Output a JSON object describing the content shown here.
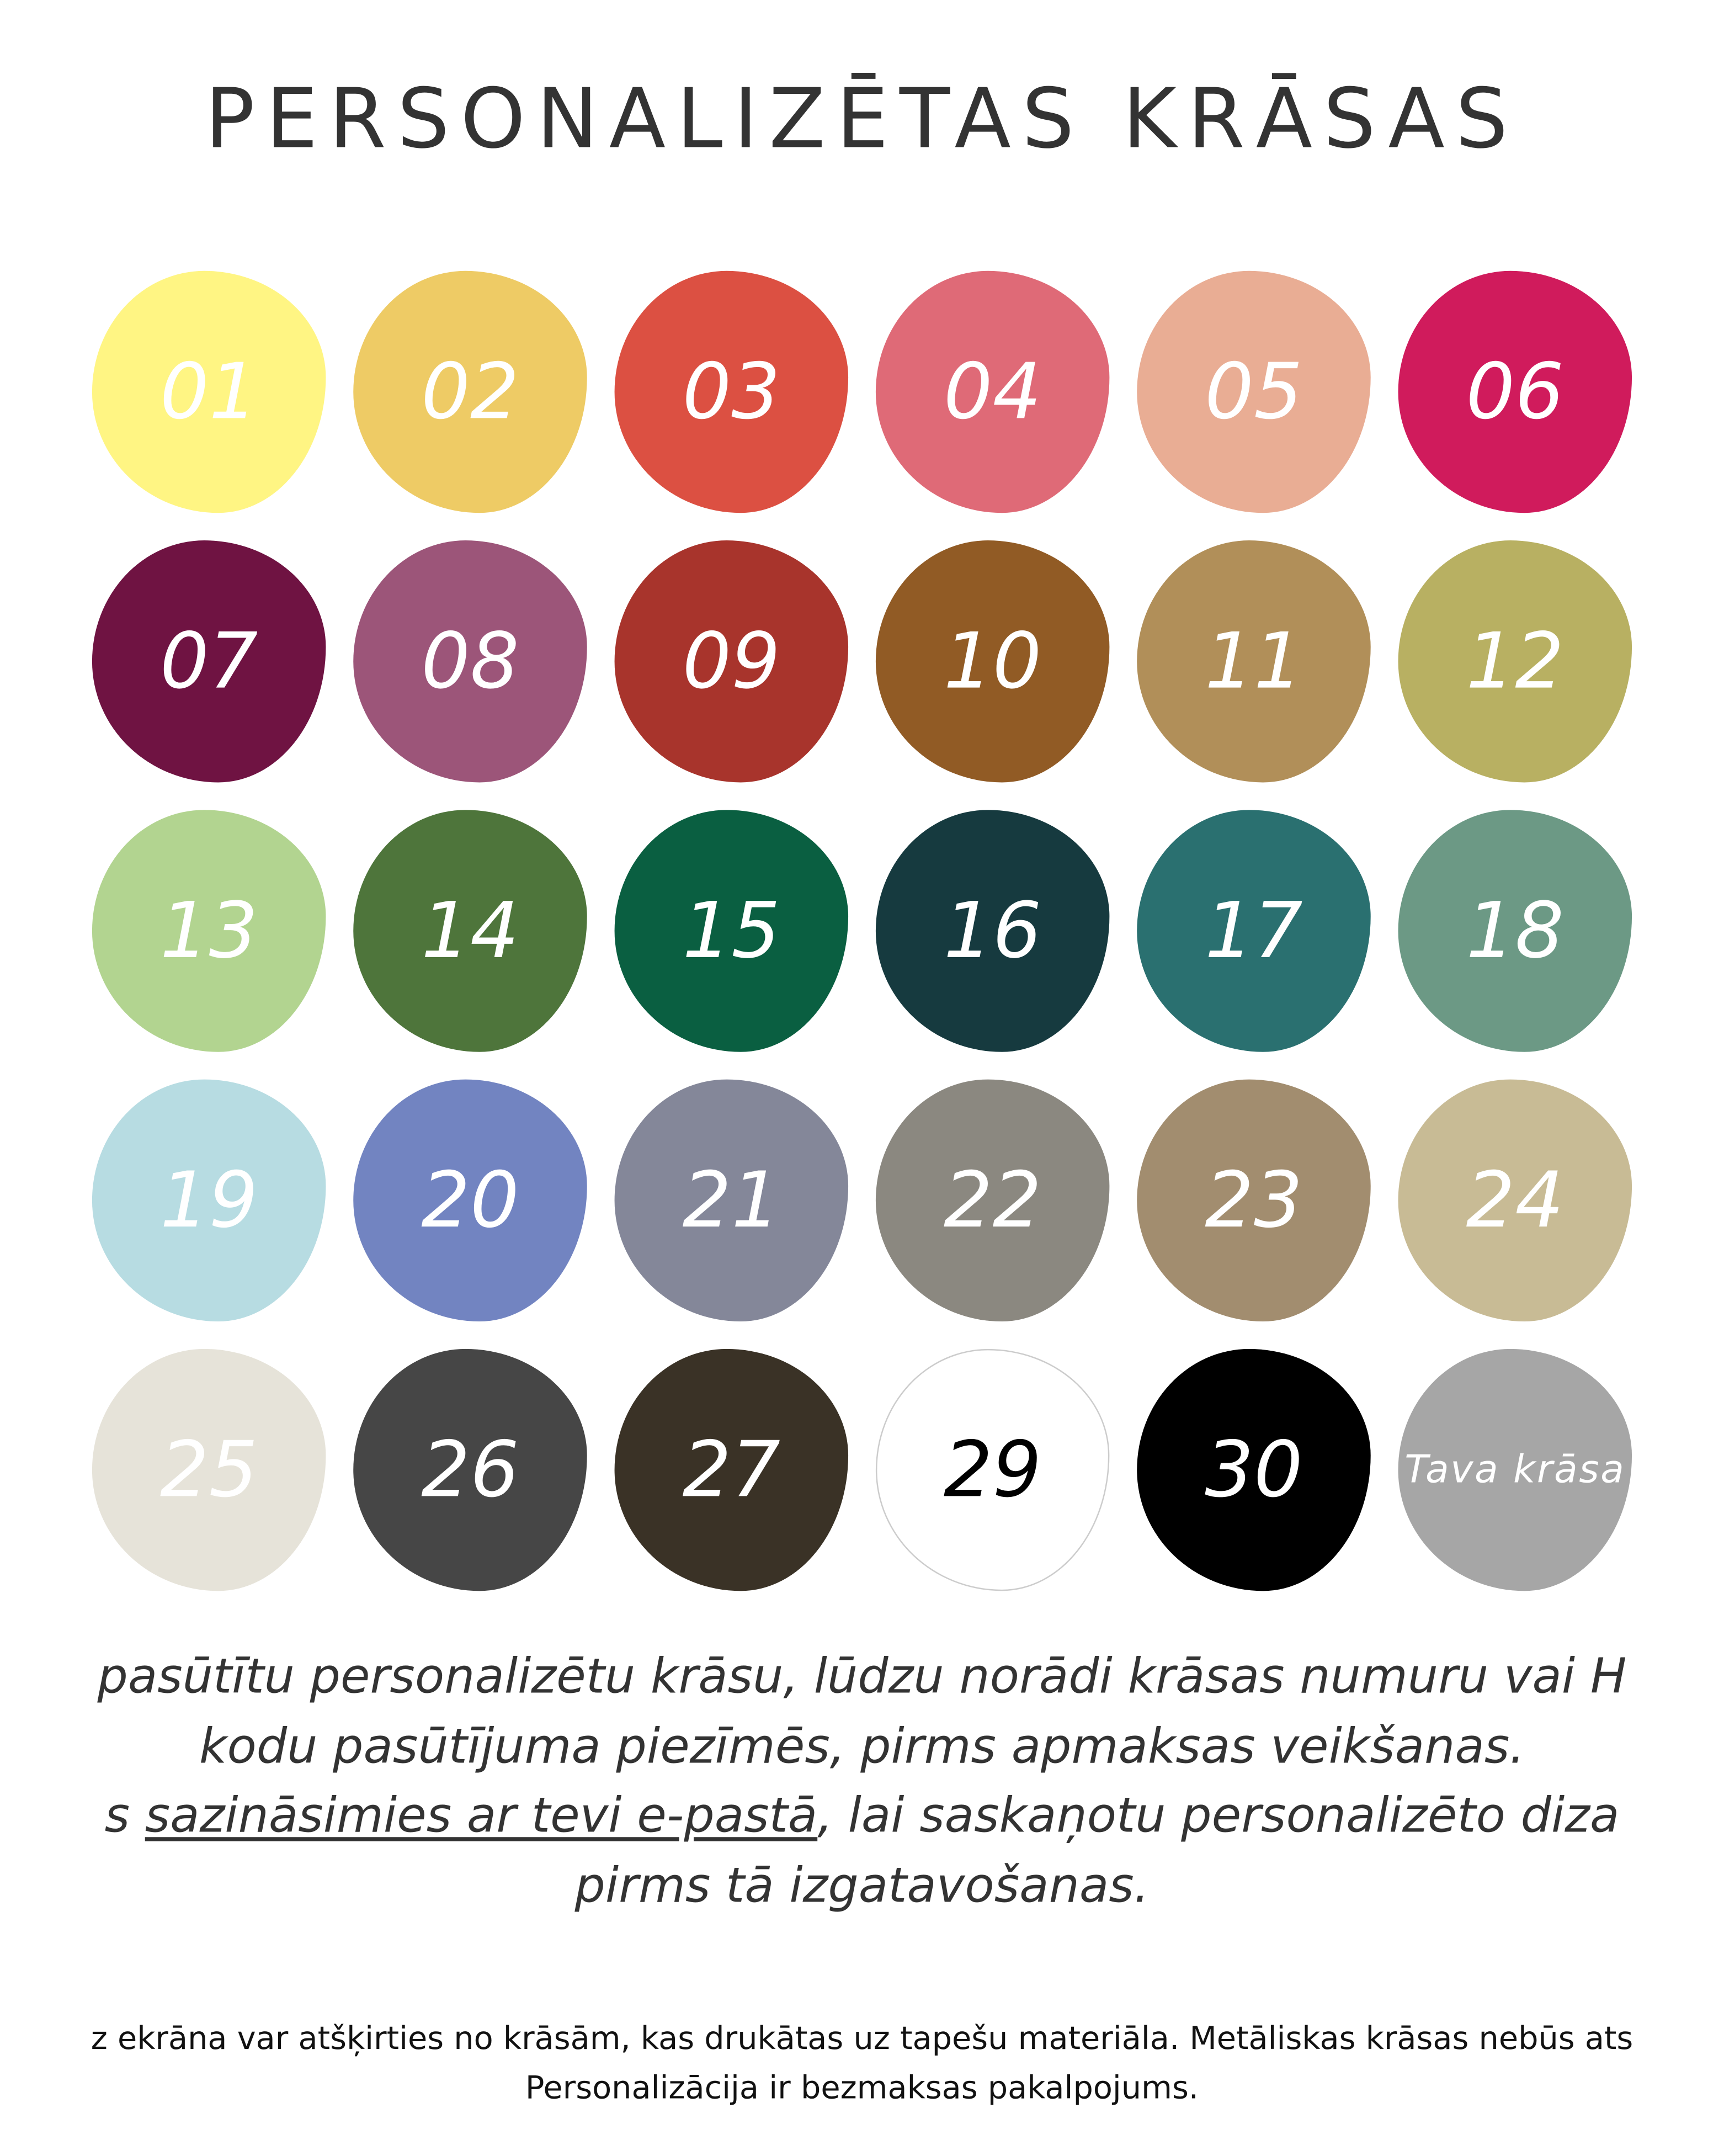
{
  "title": "PERSONALIZĒTAS KRĀSAS",
  "swatches": [
    {
      "label": "01",
      "color": "#fff583",
      "text_color": "#ffffff"
    },
    {
      "label": "02",
      "color": "#eecb65",
      "text_color": "#ffffff"
    },
    {
      "label": "03",
      "color": "#dc5042",
      "text_color": "#ffffff"
    },
    {
      "label": "04",
      "color": "#df6a77",
      "text_color": "#ffffff"
    },
    {
      "label": "05",
      "color": "#e9ad94",
      "text_color": "#ffffff"
    },
    {
      "label": "06",
      "color": "#d01b5c",
      "text_color": "#ffffff"
    },
    {
      "label": "07",
      "color": "#6f1342",
      "text_color": "#ffffff"
    },
    {
      "label": "08",
      "color": "#9c5579",
      "text_color": "#ffffff"
    },
    {
      "label": "09",
      "color": "#a8342c",
      "text_color": "#ffffff"
    },
    {
      "label": "10",
      "color": "#915b25",
      "text_color": "#ffffff"
    },
    {
      "label": "11",
      "color": "#b18f59",
      "text_color": "#ffffff"
    },
    {
      "label": "12",
      "color": "#b8b062",
      "text_color": "#ffffff"
    },
    {
      "label": "13",
      "color": "#b2d490",
      "text_color": "#ffffff"
    },
    {
      "label": "14",
      "color": "#4e753b",
      "text_color": "#ffffff"
    },
    {
      "label": "15",
      "color": "#0a5f41",
      "text_color": "#ffffff"
    },
    {
      "label": "16",
      "color": "#163a3f",
      "text_color": "#ffffff"
    },
    {
      "label": "17",
      "color": "#2a7070",
      "text_color": "#ffffff"
    },
    {
      "label": "18",
      "color": "#6c9985",
      "text_color": "#ffffff"
    },
    {
      "label": "19",
      "color": "#b7dce2",
      "text_color": "#ffffff"
    },
    {
      "label": "20",
      "color": "#7284c1",
      "text_color": "#ffffff"
    },
    {
      "label": "21",
      "color": "#848799",
      "text_color": "#ffffff"
    },
    {
      "label": "22",
      "color": "#8b8880",
      "text_color": "#ffffff"
    },
    {
      "label": "23",
      "color": "#a28d6f",
      "text_color": "#ffffff"
    },
    {
      "label": "24",
      "color": "#c8bb95",
      "text_color": "#ffffff"
    },
    {
      "label": "25",
      "color": "#e6e3d9",
      "text_color": "#ffffff"
    },
    {
      "label": "26",
      "color": "#464646",
      "text_color": "#ffffff"
    },
    {
      "label": "27",
      "color": "#3a3226",
      "text_color": "#ffffff"
    },
    {
      "label": "29",
      "color": "#ffffff",
      "text_color": "#000000"
    },
    {
      "label": "30",
      "color": "#000000",
      "text_color": "#ffffff"
    },
    {
      "label": "Tava krāsa",
      "color": "#a6a6a6",
      "text_color": "#ffffff"
    }
  ],
  "instructions": {
    "line1": "pasūtītu personalizētu krāsu, lūdzu norādi krāsas numuru vai H",
    "line2": "kodu pasūtījuma piezīmēs, pirms apmaksas veikšanas.",
    "line3_prefix": "s ",
    "line3_link": "sazināsimies ar tevi e-pastā",
    "line3_suffix": ", lai saskaņotu personalizēto diza",
    "line4": "pirms tā izgatavošanas."
  },
  "footnote": {
    "line1": "z ekrāna var atšķirties no krāsām, kas drukātas uz tapešu materiāla. Metāliskas krāsas nebūs ats",
    "line2": "Personalizācija ir bezmaksas pakalpojums."
  }
}
